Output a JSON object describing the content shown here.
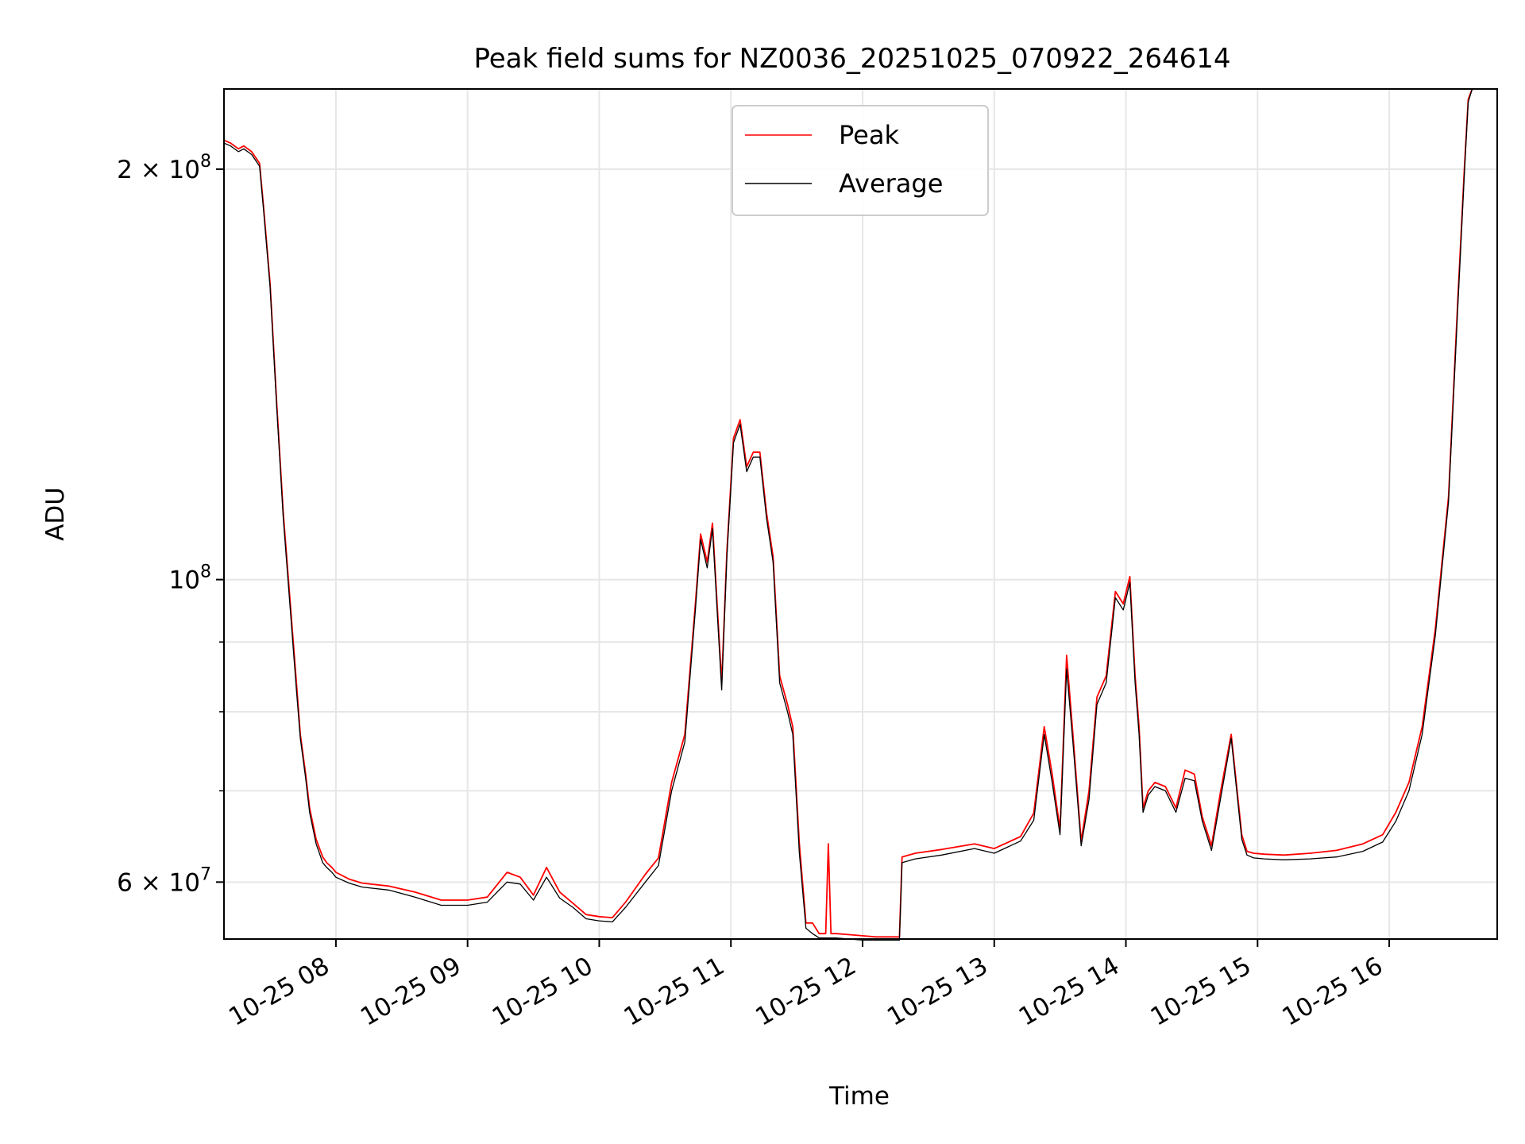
{
  "chart_data": {
    "type": "line",
    "title": "Peak field sums for NZ0036_20251025_070922_264614",
    "xlabel": "Time",
    "ylabel": "ADU",
    "yscale": "log",
    "xlim": [
      7.15,
      16.82
    ],
    "ylim": [
      54500000,
      229000000
    ],
    "grid": true,
    "legend_location": "top-center",
    "x_ticks": [
      {
        "value": 8,
        "label": "10-25 08"
      },
      {
        "value": 9,
        "label": "10-25 09"
      },
      {
        "value": 10,
        "label": "10-25 10"
      },
      {
        "value": 11,
        "label": "10-25 11"
      },
      {
        "value": 12,
        "label": "10-25 12"
      },
      {
        "value": 13,
        "label": "10-25 13"
      },
      {
        "value": 14,
        "label": "10-25 14"
      },
      {
        "value": 15,
        "label": "10-25 15"
      },
      {
        "value": 16,
        "label": "10-25 16"
      }
    ],
    "y_ticks": [
      {
        "value": 60000000,
        "mantissa": "6",
        "times": "×",
        "base": "10",
        "exp": "7"
      },
      {
        "value": 100000000,
        "mantissa": "",
        "times": "",
        "base": "10",
        "exp": "8"
      },
      {
        "value": 200000000,
        "mantissa": "2",
        "times": "×",
        "base": "10",
        "exp": "8"
      }
    ],
    "y_minor_ticks": [
      70000000,
      80000000,
      90000000
    ],
    "x_unit": "hours after 2025-10-25 00:00",
    "series": [
      {
        "name": "Peak",
        "color": "#ff0000",
        "x": [
          7.15,
          7.2,
          7.26,
          7.3,
          7.36,
          7.42,
          7.45,
          7.5,
          7.55,
          7.6,
          7.65,
          7.7,
          7.73,
          7.77,
          7.8,
          7.85,
          7.9,
          7.93,
          7.97,
          8.0,
          8.1,
          8.2,
          8.4,
          8.6,
          8.8,
          9.0,
          9.15,
          9.3,
          9.4,
          9.5,
          9.6,
          9.7,
          9.8,
          9.9,
          10.0,
          10.1,
          10.2,
          10.35,
          10.45,
          10.55,
          10.65,
          10.73,
          10.77,
          10.82,
          10.86,
          10.93,
          10.97,
          11.02,
          11.07,
          11.12,
          11.17,
          11.22,
          11.27,
          11.32,
          11.37,
          11.43,
          11.47,
          11.52,
          11.57,
          11.62,
          11.67,
          11.72,
          11.74,
          11.76,
          11.8,
          11.9,
          12.0,
          12.1,
          12.2,
          12.28,
          12.3,
          12.4,
          12.6,
          12.85,
          13.0,
          13.2,
          13.3,
          13.38,
          13.44,
          13.5,
          13.55,
          13.6,
          13.66,
          13.72,
          13.78,
          13.85,
          13.92,
          13.98,
          14.03,
          14.07,
          14.1,
          14.13,
          14.17,
          14.22,
          14.3,
          14.38,
          14.45,
          14.52,
          14.58,
          14.65,
          14.72,
          14.8,
          14.88,
          14.92,
          14.97,
          15.05,
          15.2,
          15.4,
          15.6,
          15.8,
          15.95,
          16.05,
          16.15,
          16.25,
          16.35,
          16.45,
          16.52,
          16.57,
          16.6,
          16.63
        ],
        "values": [
          210000000,
          209000000,
          207000000,
          208000000,
          206000000,
          202000000,
          188000000,
          165000000,
          135000000,
          112000000,
          97000000,
          84000000,
          77000000,
          72000000,
          68000000,
          64500000,
          62600000,
          62000000,
          61500000,
          61000000,
          60300000,
          59900000,
          59600000,
          59000000,
          58200000,
          58200000,
          58500000,
          61000000,
          60500000,
          58700000,
          61500000,
          59000000,
          57900000,
          56800000,
          56600000,
          56500000,
          58000000,
          60800000,
          62500000,
          71000000,
          77000000,
          96000000,
          108000000,
          103000000,
          110000000,
          84000000,
          105000000,
          127000000,
          131000000,
          121000000,
          124000000,
          124000000,
          112000000,
          104000000,
          85000000,
          81000000,
          78000000,
          64000000,
          56000000,
          56000000,
          55000000,
          55000000,
          64000000,
          55000000,
          55000000,
          54900000,
          54800000,
          54700000,
          54700000,
          54700000,
          62600000,
          63000000,
          63400000,
          64000000,
          63500000,
          64800000,
          67400000,
          78000000,
          72000000,
          65600000,
          88000000,
          76500000,
          64300000,
          70000000,
          82000000,
          85000000,
          98000000,
          96000000,
          100500000,
          85000000,
          78000000,
          68000000,
          70000000,
          71000000,
          70500000,
          68000000,
          72500000,
          72000000,
          67000000,
          63800000,
          70000000,
          77000000,
          65000000,
          63200000,
          63000000,
          62900000,
          62800000,
          63000000,
          63300000,
          64000000,
          65000000,
          67500000,
          71000000,
          78000000,
          92000000,
          115000000,
          160000000,
          200000000,
          225000000,
          229000000
        ]
      },
      {
        "name": "Average",
        "color": "#000000",
        "x": [
          7.15,
          7.2,
          7.26,
          7.3,
          7.36,
          7.42,
          7.45,
          7.5,
          7.55,
          7.6,
          7.65,
          7.7,
          7.73,
          7.77,
          7.8,
          7.85,
          7.9,
          7.93,
          7.97,
          8.0,
          8.1,
          8.2,
          8.4,
          8.6,
          8.8,
          9.0,
          9.15,
          9.3,
          9.4,
          9.5,
          9.6,
          9.7,
          9.8,
          9.9,
          10.0,
          10.1,
          10.2,
          10.35,
          10.45,
          10.55,
          10.65,
          10.73,
          10.77,
          10.82,
          10.86,
          10.93,
          10.97,
          11.02,
          11.07,
          11.12,
          11.17,
          11.22,
          11.27,
          11.32,
          11.37,
          11.43,
          11.47,
          11.52,
          11.57,
          11.62,
          11.67,
          11.72,
          11.74,
          11.76,
          11.8,
          11.9,
          12.0,
          12.1,
          12.2,
          12.28,
          12.3,
          12.4,
          12.6,
          12.85,
          13.0,
          13.2,
          13.3,
          13.38,
          13.44,
          13.5,
          13.55,
          13.6,
          13.66,
          13.72,
          13.78,
          13.85,
          13.92,
          13.98,
          14.03,
          14.07,
          14.1,
          14.13,
          14.17,
          14.22,
          14.3,
          14.38,
          14.45,
          14.52,
          14.58,
          14.65,
          14.72,
          14.8,
          14.88,
          14.92,
          14.97,
          15.05,
          15.2,
          15.4,
          15.6,
          15.8,
          15.95,
          16.05,
          16.15,
          16.25,
          16.35,
          16.45,
          16.52,
          16.57,
          16.6,
          16.63
        ],
        "values": [
          209000000,
          208000000,
          206000000,
          207000000,
          205000000,
          201000000,
          187000000,
          164000000,
          134000000,
          111000000,
          96000000,
          83000000,
          76500000,
          71500000,
          67500000,
          64000000,
          62000000,
          61500000,
          61000000,
          60500000,
          59900000,
          59500000,
          59200000,
          58500000,
          57700000,
          57700000,
          58000000,
          60000000,
          59800000,
          58200000,
          60500000,
          58400000,
          57500000,
          56400000,
          56200000,
          56100000,
          57500000,
          60000000,
          61700000,
          70000000,
          76000000,
          95000000,
          107000000,
          102000000,
          109000000,
          83000000,
          104000000,
          126000000,
          130000000,
          120000000,
          123000000,
          123000000,
          111000000,
          103000000,
          84000000,
          80000000,
          77000000,
          63000000,
          55500000,
          55000000,
          54600000,
          54600000,
          54600000,
          54600000,
          54600000,
          54500000,
          54400000,
          54400000,
          54400000,
          54400000,
          62000000,
          62400000,
          62800000,
          63500000,
          63000000,
          64300000,
          66600000,
          77000000,
          71000000,
          65000000,
          86000000,
          75500000,
          63800000,
          69000000,
          81000000,
          84000000,
          97000000,
          95000000,
          99500000,
          84000000,
          77000000,
          67500000,
          69500000,
          70500000,
          70000000,
          67500000,
          71500000,
          71200000,
          66500000,
          63300000,
          69200000,
          76500000,
          64500000,
          62800000,
          62500000,
          62400000,
          62300000,
          62400000,
          62600000,
          63200000,
          64200000,
          66500000,
          70000000,
          77000000,
          91000000,
          114000000,
          158000000,
          198000000,
          224000000,
          229000000
        ]
      }
    ]
  }
}
